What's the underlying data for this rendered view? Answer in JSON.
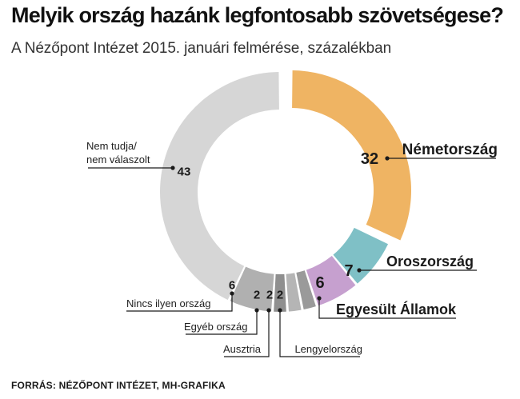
{
  "title": "Melyik ország hazánk legfontosabb szövetségese?",
  "subtitle": "A Nézőpont Intézet 2015. januári felmérése, százalékban",
  "source": "FORRÁS: NÉZŐPONT INTÉZET, MH-GRAFIKA",
  "colors": {
    "nemetorszag": "#efb463",
    "oroszorszag": "#7fc0c6",
    "egyesult_allamok": "#c6a0cf",
    "lengyelorszag": "#9a9a9a",
    "ausztria": "#b5b5b5",
    "egyeb": "#8f8f8f",
    "nincs": "#b0b0b0",
    "nem_tudja": "#d6d6d6"
  },
  "chart_data": {
    "type": "pie",
    "donut": true,
    "unit": "%",
    "slices": [
      {
        "label": "Németország",
        "value": 32,
        "color_key": "nemetorszag"
      },
      {
        "label": "Oroszország",
        "value": 7,
        "color_key": "oroszorszag"
      },
      {
        "label": "Egyesült Államok",
        "value": 6,
        "color_key": "egyesult_allamok"
      },
      {
        "label": "Lengyelország",
        "value": 2,
        "color_key": "lengyelorszag"
      },
      {
        "label": "Ausztria",
        "value": 2,
        "color_key": "ausztria"
      },
      {
        "label": "Egyéb ország",
        "value": 2,
        "color_key": "egyeb"
      },
      {
        "label": "Nincs ilyen ország",
        "value": 6,
        "color_key": "nincs"
      },
      {
        "label": "Nem tudja/ nem válaszolt",
        "value": 43,
        "color_key": "nem_tudja"
      }
    ]
  }
}
